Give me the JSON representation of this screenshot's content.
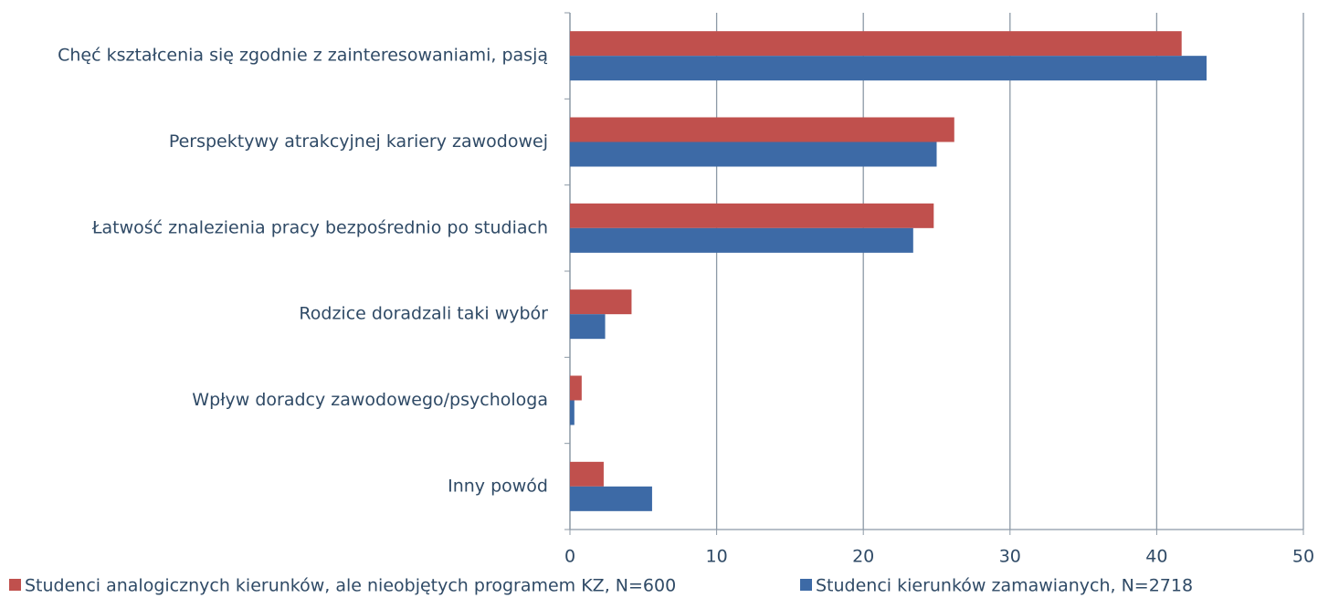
{
  "chart_data": {
    "type": "bar",
    "orientation": "horizontal",
    "categories": [
      "Chęć kształcenia się zgodnie z zainteresowaniami, pasją",
      "Perspektywy atrakcyjnej kariery zawodowej",
      "Łatwość znalezienia pracy bezpośrednio po studiach",
      "Rodzice doradzali taki wybór",
      "Wpływ doradcy zawodowego/psychologa",
      "Inny powód"
    ],
    "series": [
      {
        "name": "Studenci analogicznych kierunków, ale nieobjętych programem KZ, N=600",
        "color": "#c0504d",
        "values": [
          41.7,
          26.2,
          24.8,
          4.2,
          0.8,
          2.3
        ]
      },
      {
        "name": "Studenci kierunków zamawianych, N=2718",
        "color": "#3d6aa6",
        "values": [
          43.4,
          25.0,
          23.4,
          2.4,
          0.3,
          5.6
        ]
      }
    ],
    "xlim": [
      0,
      50
    ],
    "xticks": [
      0,
      10,
      20,
      30,
      40,
      50
    ],
    "grid": true,
    "legend": "bottom"
  }
}
